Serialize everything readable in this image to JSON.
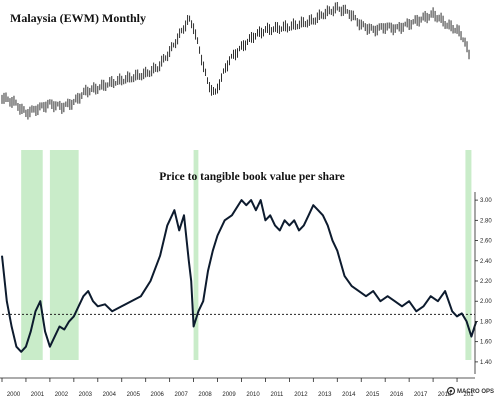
{
  "chart_data": [
    {
      "type": "line",
      "title": "Malaysia (EWM) Monthly",
      "grid": false,
      "series": [
        {
          "style": "ohlc-bars",
          "x": [
            2000.0,
            2000.5,
            2001.0,
            2001.5,
            2002.0,
            2002.5,
            2003.0,
            2003.5,
            2004.0,
            2004.5,
            2005.0,
            2005.5,
            2006.0,
            2006.5,
            2007.0,
            2007.5,
            2007.8,
            2008.0,
            2008.3,
            2008.6,
            2008.9,
            2009.2,
            2009.5,
            2010.0,
            2010.5,
            2011.0,
            2011.5,
            2012.0,
            2012.5,
            2013.0,
            2013.4,
            2013.7,
            2014.0,
            2014.5,
            2015.0,
            2015.5,
            2016.0,
            2016.5,
            2017.0,
            2017.5,
            2018.0,
            2018.3,
            2018.6,
            2019.0,
            2019.3,
            2019.5
          ],
          "y": [
            0.43,
            0.4,
            0.33,
            0.36,
            0.39,
            0.37,
            0.4,
            0.47,
            0.49,
            0.52,
            0.54,
            0.56,
            0.58,
            0.62,
            0.72,
            0.85,
            0.93,
            0.88,
            0.7,
            0.52,
            0.45,
            0.57,
            0.67,
            0.75,
            0.82,
            0.86,
            0.87,
            0.88,
            0.9,
            0.92,
            0.96,
            0.98,
            1.0,
            0.97,
            0.89,
            0.86,
            0.88,
            0.87,
            0.9,
            0.93,
            0.96,
            0.93,
            0.89,
            0.86,
            0.8,
            0.7
          ]
        }
      ],
      "shaded_periods": [
        [
          2000.8,
          2001.7
        ],
        [
          2002.0,
          2003.2
        ],
        [
          2008.0,
          2008.2
        ],
        [
          2019.35,
          2019.6
        ]
      ]
    },
    {
      "type": "line",
      "title": "Price to tangible book value per share",
      "grid": false,
      "ylim": [
        1.3,
        3.1
      ],
      "yticks": [
        "1.40",
        "1.60",
        "1.80",
        "2.00",
        "2.20",
        "2.40",
        "2.60",
        "2.80",
        "3.00"
      ],
      "xticks": [
        "2000",
        "2001",
        "2002",
        "2003",
        "2004",
        "2005",
        "2006",
        "2007",
        "2008",
        "2009",
        "2010",
        "2011",
        "2012",
        "2013",
        "2014",
        "2015",
        "2016",
        "2017",
        "2018",
        "201"
      ],
      "reference_line": {
        "value": 1.87,
        "style": "dashed"
      },
      "series": [
        {
          "x": [
            2000.0,
            2000.2,
            2000.4,
            2000.6,
            2000.8,
            2001.0,
            2001.2,
            2001.4,
            2001.6,
            2001.8,
            2002.0,
            2002.2,
            2002.4,
            2002.6,
            2002.8,
            2003.0,
            2003.2,
            2003.4,
            2003.6,
            2003.8,
            2004.0,
            2004.3,
            2004.6,
            2005.0,
            2005.4,
            2005.8,
            2006.2,
            2006.6,
            2006.9,
            2007.2,
            2007.4,
            2007.6,
            2007.8,
            2007.9,
            2008.0,
            2008.2,
            2008.4,
            2008.6,
            2008.8,
            2009.0,
            2009.3,
            2009.6,
            2010.0,
            2010.2,
            2010.4,
            2010.6,
            2010.8,
            2011.0,
            2011.2,
            2011.4,
            2011.6,
            2011.8,
            2012.0,
            2012.2,
            2012.4,
            2012.6,
            2012.8,
            2013.0,
            2013.2,
            2013.4,
            2013.6,
            2013.8,
            2014.0,
            2014.3,
            2014.6,
            2014.9,
            2015.2,
            2015.5,
            2015.8,
            2016.1,
            2016.4,
            2016.7,
            2017.0,
            2017.3,
            2017.6,
            2017.9,
            2018.2,
            2018.5,
            2018.8,
            2019.0,
            2019.2,
            2019.4,
            2019.6,
            2019.8
          ],
          "y": [
            2.45,
            2.0,
            1.75,
            1.55,
            1.5,
            1.55,
            1.7,
            1.9,
            2.0,
            1.7,
            1.55,
            1.65,
            1.75,
            1.72,
            1.8,
            1.85,
            1.95,
            2.05,
            2.1,
            2.0,
            1.95,
            1.97,
            1.9,
            1.95,
            2.0,
            2.05,
            2.2,
            2.45,
            2.75,
            2.9,
            2.7,
            2.85,
            2.4,
            2.2,
            1.75,
            1.9,
            2.0,
            2.3,
            2.5,
            2.65,
            2.8,
            2.85,
            3.0,
            2.95,
            3.0,
            2.9,
            3.0,
            2.8,
            2.85,
            2.75,
            2.7,
            2.8,
            2.75,
            2.8,
            2.7,
            2.75,
            2.85,
            2.95,
            2.9,
            2.85,
            2.75,
            2.6,
            2.5,
            2.25,
            2.15,
            2.1,
            2.05,
            2.1,
            2.0,
            2.05,
            2.0,
            1.95,
            2.0,
            1.9,
            1.95,
            2.05,
            2.0,
            2.1,
            1.9,
            1.85,
            1.88,
            1.8,
            1.65,
            1.8
          ]
        }
      ]
    }
  ],
  "colors": {
    "line": "#0d1b2e",
    "price_bars": "#1a1a1a",
    "shading": "#c9ecc9",
    "dashed": "#222222"
  },
  "brand": {
    "logo_icon": "macro-ops-logo-icon",
    "name": "MACRO OPS"
  }
}
